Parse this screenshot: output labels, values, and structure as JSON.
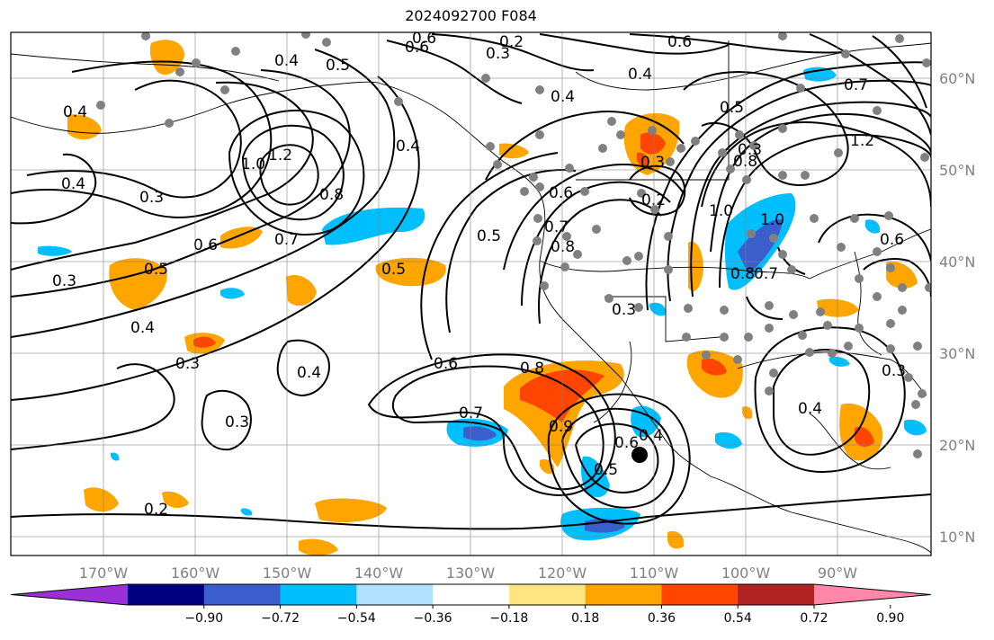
{
  "title": "2024092700 F084",
  "lon_labels": [
    "170°W",
    "160°W",
    "150°W",
    "140°W",
    "130°W",
    "120°W",
    "110°W",
    "100°W",
    "90°W"
  ],
  "lat_labels": [
    "60°N",
    "50°N",
    "40°N",
    "30°N",
    "20°N",
    "10°N"
  ],
  "colorbar": {
    "colors": [
      "#9b30d9",
      "#000080",
      "#3a5fcd",
      "#00bfff",
      "#b0e2ff",
      "#ffffff",
      "#ffe680",
      "#ffa500",
      "#ff4500",
      "#b22222",
      "#ff88aa"
    ],
    "labels": [
      "−0.90",
      "−0.72",
      "−0.54",
      "−0.36",
      "−0.18",
      "0.18",
      "0.36",
      "0.54",
      "0.72",
      "0.90"
    ]
  },
  "contour_labels": [
    {
      "text": "0.6"
    },
    {
      "text": "0.5"
    },
    {
      "text": "0.4"
    },
    {
      "text": "0.3"
    },
    {
      "text": "0.2"
    },
    {
      "text": "0.3"
    },
    {
      "text": "0.4"
    },
    {
      "text": "0.6"
    },
    {
      "text": "0.4"
    },
    {
      "text": "0.3"
    },
    {
      "text": "0.4"
    },
    {
      "text": "0.5"
    },
    {
      "text": "0.6"
    },
    {
      "text": "0.7"
    },
    {
      "text": "0.8"
    },
    {
      "text": "1.0"
    },
    {
      "text": "1.2"
    },
    {
      "text": "0.4"
    },
    {
      "text": "0.3"
    },
    {
      "text": "0.6"
    },
    {
      "text": "0.5"
    },
    {
      "text": "0.4"
    },
    {
      "text": "0.5"
    },
    {
      "text": "0.7"
    },
    {
      "text": "0.8"
    },
    {
      "text": "0.3"
    },
    {
      "text": "0.4"
    },
    {
      "text": "0.6"
    },
    {
      "text": "0.3"
    },
    {
      "text": "0.5"
    },
    {
      "text": "0.7"
    },
    {
      "text": "1.2"
    },
    {
      "text": "0.2"
    },
    {
      "text": "0.6"
    },
    {
      "text": "0.7"
    },
    {
      "text": "0.8"
    },
    {
      "text": "0.4"
    },
    {
      "text": "0.3"
    },
    {
      "text": "0.4"
    },
    {
      "text": "0.6"
    },
    {
      "text": "0.5"
    },
    {
      "text": "1.0"
    },
    {
      "text": "0.8"
    },
    {
      "text": "0.7"
    },
    {
      "text": "1.0"
    },
    {
      "text": "0.8"
    },
    {
      "text": "0.9"
    },
    {
      "text": "0.3"
    },
    {
      "text": "0.2"
    },
    {
      "text": "0.4"
    },
    {
      "text": "0.6"
    },
    {
      "text": "0.3"
    }
  ]
}
